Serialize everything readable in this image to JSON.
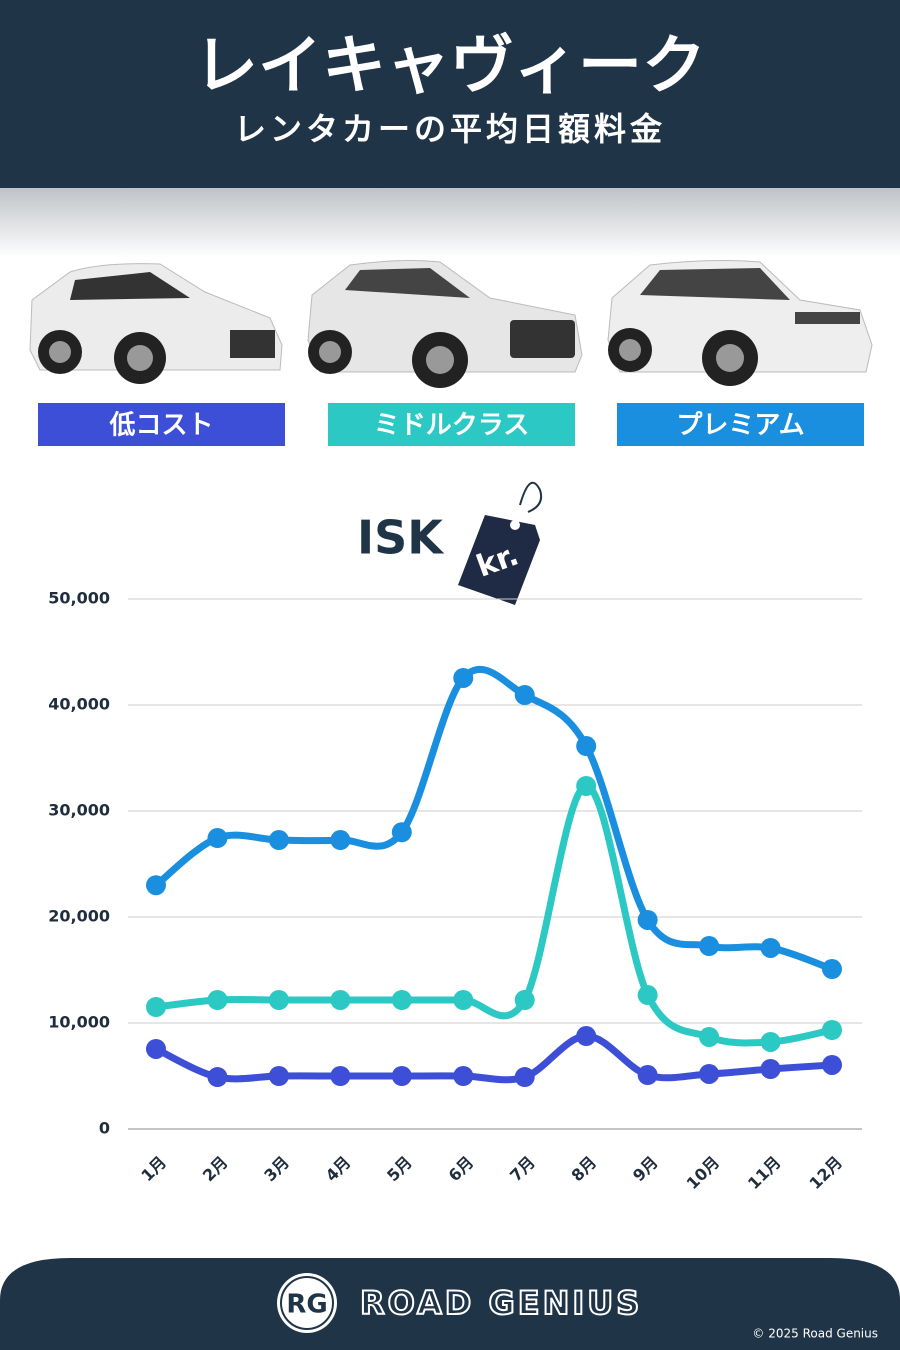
{
  "header": {
    "title": "レイキャヴィーク",
    "subtitle": "レンタカーの平均日額料金"
  },
  "currency": {
    "code": "ISK",
    "symbol": "kr."
  },
  "chart_data": {
    "type": "line",
    "categories": [
      "1月",
      "2月",
      "3月",
      "4月",
      "5月",
      "6月",
      "7月",
      "8月",
      "9月",
      "10月",
      "11月",
      "12月"
    ],
    "series": [
      {
        "name": "低コスト",
        "color": "#3d4fd6",
        "values": [
          7550,
          4900,
          5000,
          5000,
          5000,
          5000,
          4900,
          8770,
          5090,
          5190,
          5660,
          6040
        ]
      },
      {
        "name": "ミドルクラス",
        "color": "#2cc9c4",
        "values": [
          11510,
          12170,
          12170,
          12170,
          12170,
          12170,
          12170,
          32360,
          12640,
          8680,
          8210,
          9340
        ]
      },
      {
        "name": "プレミアム",
        "color": "#1a8fe0",
        "values": [
          23000,
          27450,
          27260,
          27260,
          28000,
          42550,
          40940,
          36130,
          19720,
          17260,
          17080,
          15090
        ]
      }
    ],
    "ylim": [
      0,
      50000
    ],
    "yticks": [
      0,
      {
        "value": 10000,
        "label": "10,000"
      },
      {
        "value": 20000,
        "label": "20,000"
      },
      {
        "value": 30000,
        "label": "30,000"
      },
      {
        "value": 40000,
        "label": "40,000"
      },
      {
        "value": 50000,
        "label": "50,000"
      }
    ],
    "grid": true
  },
  "footer": {
    "logo": "RG",
    "brand": "ROAD GENIUS",
    "copyright": "© 2025 Road Genius"
  }
}
